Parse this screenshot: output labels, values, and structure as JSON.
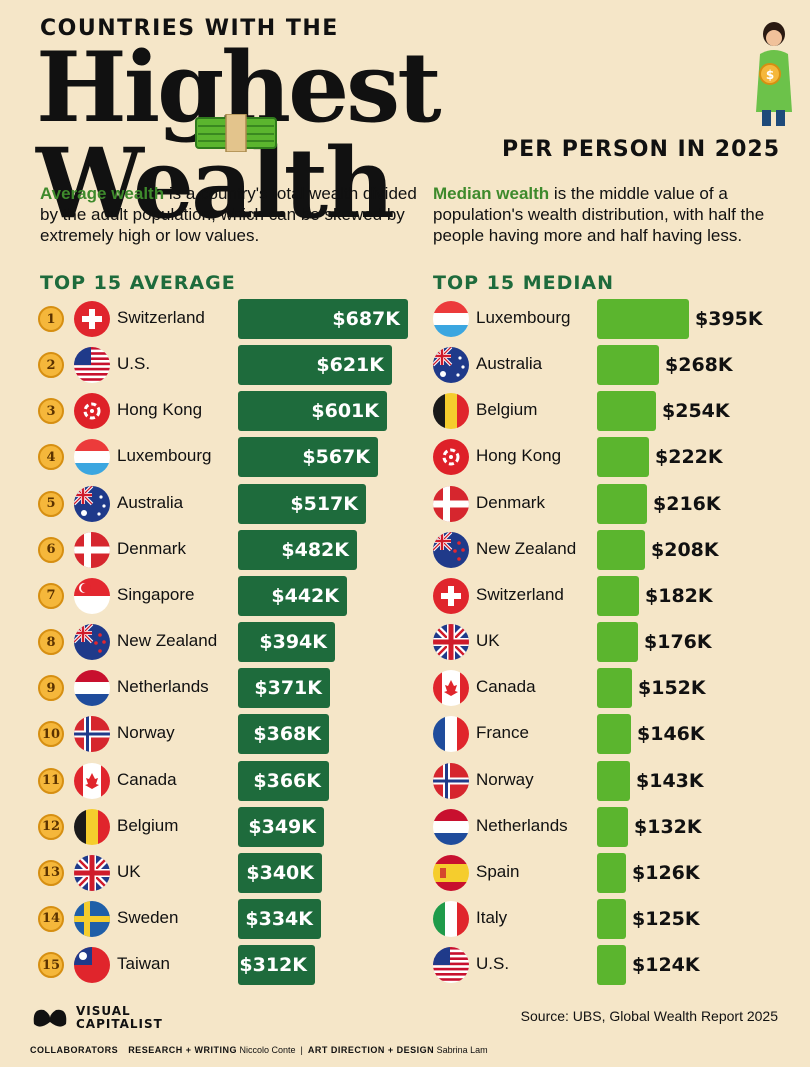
{
  "header": {
    "kicker": "COUNTRIES WITH THE",
    "title": "Highest Wealth",
    "subtitle": "PER PERSON IN 2025"
  },
  "descriptions": {
    "average_term": "Average wealth",
    "average_text": " is a country's total wealth divided by the adult population, which can be skewed by extremely high or low values.",
    "median_term": "Median wealth",
    "median_text": " is the middle value of a population's wealth distribution, with half the people having more and half having less."
  },
  "colors": {
    "background": "#f5e6c8",
    "average_bar": "#1e6b3c",
    "median_bar": "#5bb52e",
    "heading": "#1e6b3c",
    "rank_badge": "#f5b73b"
  },
  "chart_data": [
    {
      "type": "bar",
      "title": "TOP 15 AVERAGE",
      "unit": "$K",
      "categories": [
        "Switzerland",
        "U.S.",
        "Hong Kong",
        "Luxembourg",
        "Australia",
        "Denmark",
        "Singapore",
        "New Zealand",
        "Netherlands",
        "Norway",
        "Canada",
        "Belgium",
        "UK",
        "Sweden",
        "Taiwan"
      ],
      "ranks": [
        "1",
        "2",
        "3",
        "4",
        "5",
        "6",
        "7",
        "8",
        "9",
        "10",
        "11",
        "12",
        "13",
        "14",
        "15"
      ],
      "flags": [
        "ch",
        "us",
        "hk",
        "lu",
        "au",
        "dk",
        "sg",
        "nz",
        "nl",
        "no",
        "ca",
        "be",
        "uk",
        "se",
        "tw"
      ],
      "values": [
        687,
        621,
        601,
        567,
        517,
        482,
        442,
        394,
        371,
        368,
        366,
        349,
        340,
        334,
        312
      ],
      "labels": [
        "$687K",
        "$621K",
        "$601K",
        "$567K",
        "$517K",
        "$482K",
        "$442K",
        "$394K",
        "$371K",
        "$368K",
        "$366K",
        "$349K",
        "$340K",
        "$334K",
        "$312K"
      ]
    },
    {
      "type": "bar",
      "title": "TOP 15 MEDIAN",
      "unit": "$K",
      "categories": [
        "Luxembourg",
        "Australia",
        "Belgium",
        "Hong Kong",
        "Denmark",
        "New Zealand",
        "Switzerland",
        "UK",
        "Canada",
        "France",
        "Norway",
        "Netherlands",
        "Spain",
        "Italy",
        "U.S."
      ],
      "flags": [
        "lu",
        "au",
        "be",
        "hk",
        "dk",
        "nz",
        "ch",
        "uk",
        "ca",
        "fr",
        "no",
        "nl",
        "es",
        "it",
        "us"
      ],
      "values": [
        395,
        268,
        254,
        222,
        216,
        208,
        182,
        176,
        152,
        146,
        143,
        132,
        126,
        125,
        124
      ],
      "labels": [
        "$395K",
        "$268K",
        "$254K",
        "$222K",
        "$216K",
        "$208K",
        "$182K",
        "$176K",
        "$152K",
        "$146K",
        "$143K",
        "$132K",
        "$126K",
        "$125K",
        "$124K"
      ]
    }
  ],
  "footer": {
    "source": "Source: UBS, Global Wealth Report 2025",
    "logo_line1": "VISUAL",
    "logo_line2": "CAPITALIST",
    "collaborators": "COLLABORATORS",
    "research_label": "RESEARCH + WRITING",
    "research_name": "Niccolo Conte",
    "art_label": "ART DIRECTION + DESIGN",
    "art_name": "Sabrina Lam"
  }
}
